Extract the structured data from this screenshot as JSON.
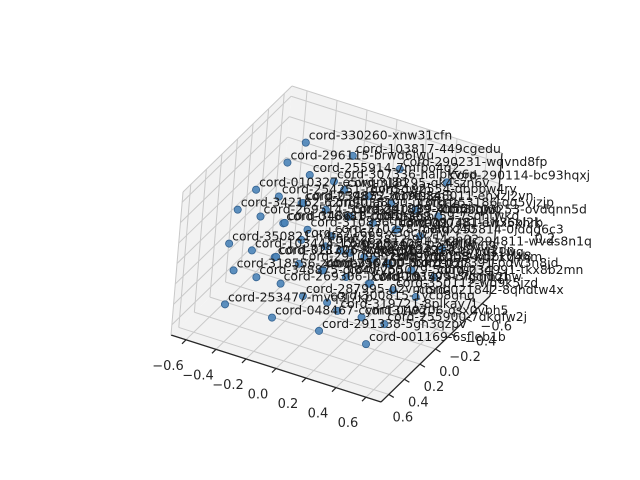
{
  "figure": {
    "background": "#ffffff"
  },
  "chart_data": {
    "type": "scatter",
    "projection": "3d",
    "legend": "none",
    "grid": true,
    "axis_range": {
      "x": [
        -0.7,
        0.7
      ],
      "y": [
        -0.7,
        0.7
      ],
      "z": [
        -0.7,
        0.7
      ]
    },
    "x_tick_labels": [
      "−0.6",
      "−0.4",
      "−0.2",
      "0.0",
      "0.2",
      "0.4",
      "0.6"
    ],
    "y_tick_labels": [
      "0.6",
      "0.4",
      "0.2",
      "0.0",
      "−0.2",
      "−0.4",
      "−0.6"
    ],
    "z_tick_labels_visible": [
      "0.2"
    ],
    "tick_values": [
      -0.6,
      -0.4,
      -0.2,
      0.0,
      0.2,
      0.4,
      0.6
    ],
    "lattice_x": [
      -0.45,
      -0.15,
      0.15,
      0.45
    ],
    "lattice_y": [
      -0.45,
      -0.15,
      0.15,
      0.45
    ],
    "lattice_z": [
      -0.45,
      -0.15,
      0.15,
      0.45
    ],
    "point_count": 64,
    "labels_top_to_bottom": [
      "cord-330260-xnw31cfn",
      "cord-103817-449cgedu",
      "cord-296115-brwd6lwu",
      "cord-290231-wqvnd8fp",
      "cord-255914-7mfbo4q2",
      "cord-307336-halpkv6p",
      "cord-290114-bc93hqxj",
      "cord-010327-e5wqmj8d",
      "cord-318295-qk4szn6v",
      "cord-192554-dbpbw4ry",
      "cord-254251-rgvh5dwm",
      "cord-034852-w19enzn3",
      "cord-348011-ehxzl2vn",
      "cord-259875-zlq7f08a",
      "cord-253186-qg5vjzjp",
      "cord-342162-62m9tua8",
      "cord-035190-uj3tkrfa",
      "cord-340089-4h55bqwo",
      "cord-103253-ovdqnn5d",
      "cord-269514-55jzaxjd",
      "cord-291839-x0tq8fqm",
      "cord-348610-pjt4bssg",
      "cord-269759-7sqntwkd",
      "cord-016981-cdq5mesb",
      "cord-297481-1h36pl2k",
      "cord-310836-ftl3wdqz",
      "cord-000381-ewx5xhrb",
      "cord-310278-melqxj40",
      "cord-255814-0jdqg6c3",
      "cord-271660-x3gcw7jv",
      "cord-350821-h4fnsw2f",
      "cord-282812-9m54gh02",
      "cord-294811-wvds8n1q",
      "cord-103444-17vosgcp",
      "cord-287406-b54dtrif",
      "cord-350655-q3hjkw09",
      "cord-021306-kvlpenvt",
      "cord-310491-kq8vw2dn",
      "cord-318721-8olkay7l",
      "cord-048466-cyml31wg",
      "cord-256153-kg21vlx8",
      "cord-291099-j2sf09wq",
      "cord-103008-wdpkq4hm",
      "cord-350400-8xkzcv5t",
      "cord-027391-pqw3n8jd",
      "cord-318556-z4bqov1s",
      "cord-296700-h0m2tkq8",
      "cord-255079-5dqwjz3c",
      "cord-034991-tkx8b2mn",
      "cord-348875-qj64wvp0",
      "cord-291475-3fjsndq1",
      "cord-269306-lxv4q0tb",
      "cord-103599-r7gqm2hw",
      "cord-350112-wq9k5jzd",
      "cord-287995-02vmfsnq",
      "cord-021842-8qhdtw4x",
      "cord-300815-1ycb8ghq",
      "cord-253477-mvq3j7kp",
      "cord-319721-8plkay7l",
      "cord-049206-qsx0vbh5",
      "cord-048467-cym131wg",
      "cord-255900-7dkqfw2j",
      "cord-291338-5gh3qzpv",
      "cord-001169-6sfleb1b"
    ],
    "colors": {
      "point_fill": "#4b84b8",
      "point_edge": "#33618f",
      "pane_fill": "#f2f2f2",
      "grid_line": "#c9c9c9",
      "spine": "#262626",
      "label_text": "#1a1a1a",
      "tick_text": "#262626"
    }
  }
}
